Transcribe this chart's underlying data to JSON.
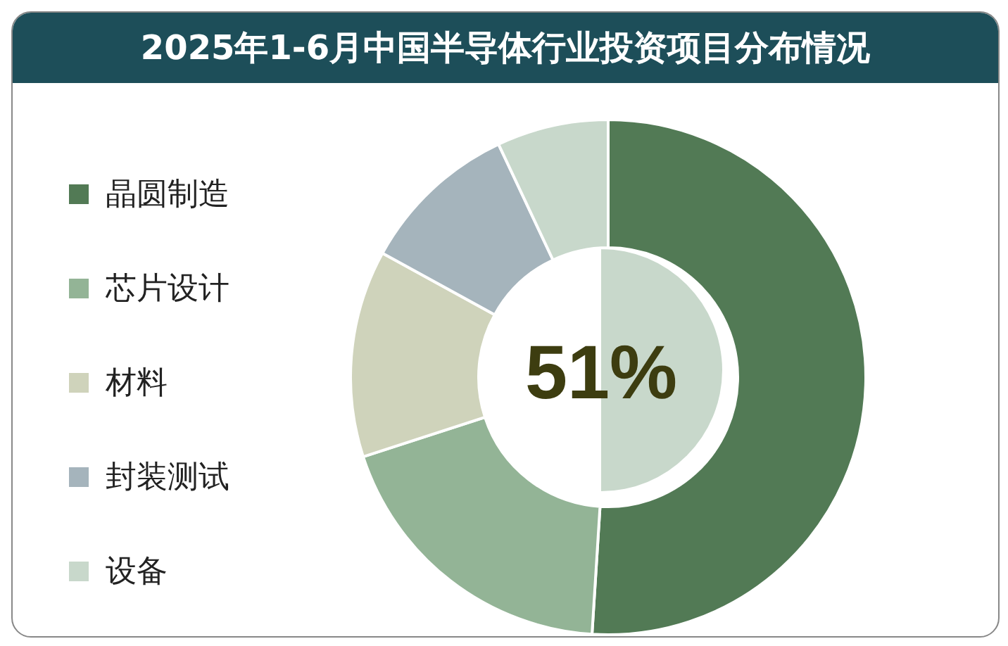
{
  "chart_data": {
    "type": "donut",
    "title": "2025年1-6月中国半导体行业投资项目分布情况",
    "categories": [
      "晶圆制造",
      "芯片设计",
      "材料",
      "封装测试",
      "设备"
    ],
    "values": [
      51,
      19,
      13,
      10,
      7
    ],
    "colors": [
      "#527a55",
      "#93b496",
      "#cfd3bb",
      "#a5b4bc",
      "#c8d8cb"
    ],
    "legend": "left",
    "annotations": [
      "51%"
    ]
  }
}
